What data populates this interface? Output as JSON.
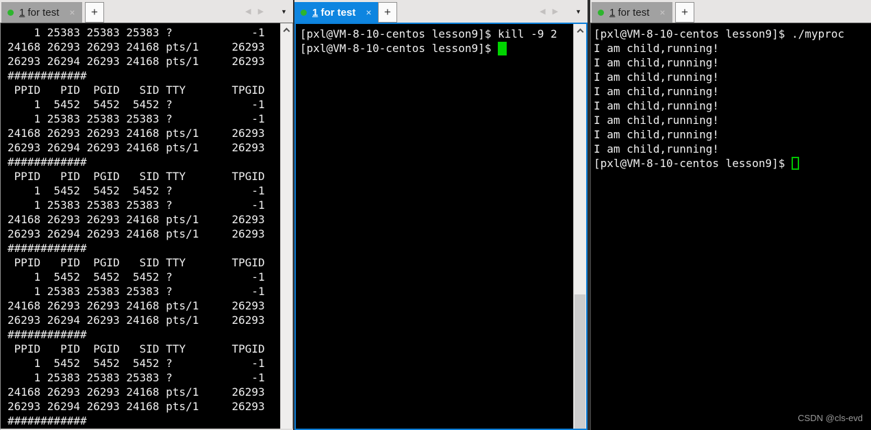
{
  "tab": {
    "accel": "1",
    "rest": " for test",
    "close": "×",
    "new_tab": "+",
    "nav_back": "◀",
    "nav_fwd": "▶",
    "dropdown": "▼"
  },
  "left_terminal": {
    "text": "    1 25383 25383 25383 ?            -1\n24168 26293 26293 24168 pts/1     26293\n26293 26294 26293 24168 pts/1     26293\n############\n PPID   PID  PGID   SID TTY       TPGID\n    1  5452  5452  5452 ?            -1\n    1 25383 25383 25383 ?            -1\n24168 26293 26293 24168 pts/1     26293\n26293 26294 26293 24168 pts/1     26293\n############\n PPID   PID  PGID   SID TTY       TPGID\n    1  5452  5452  5452 ?            -1\n    1 25383 25383 25383 ?            -1\n24168 26293 26293 24168 pts/1     26293\n26293 26294 26293 24168 pts/1     26293\n############\n PPID   PID  PGID   SID TTY       TPGID\n    1  5452  5452  5452 ?            -1\n    1 25383 25383 25383 ?            -1\n24168 26293 26293 24168 pts/1     26293\n26293 26294 26293 24168 pts/1     26293\n############\n PPID   PID  PGID   SID TTY       TPGID\n    1  5452  5452  5452 ?            -1\n    1 25383 25383 25383 ?            -1\n24168 26293 26293 24168 pts/1     26293\n26293 26294 26293 24168 pts/1     26293\n############"
  },
  "middle_terminal": {
    "command_line": "[pxl@VM-8-10-centos lesson9]$ kill -9 2",
    "prompt": "[pxl@VM-8-10-centos lesson9]$ "
  },
  "right_terminal": {
    "text": "[pxl@VM-8-10-centos lesson9]$ ./myproc\nI am child,running!\nI am child,running!\nI am child,running!\nI am child,running!\nI am child,running!\nI am child,running!\nI am child,running!\nI am child,running!",
    "prompt": "[pxl@VM-8-10-centos lesson9]$ "
  },
  "watermark": "CSDN @cls-evd",
  "colors": {
    "active_tab_blue": "#0e85e0",
    "inactive_tab_gray": "#a1a1a1",
    "tabbar_background": "#e7e5e4",
    "terminal_background": "#000000",
    "terminal_foreground": "#f0f0f0",
    "cursor_green": "#00d400",
    "session_dot_green": "#2db52d",
    "focus_border_blue": "#0c7fd9"
  }
}
